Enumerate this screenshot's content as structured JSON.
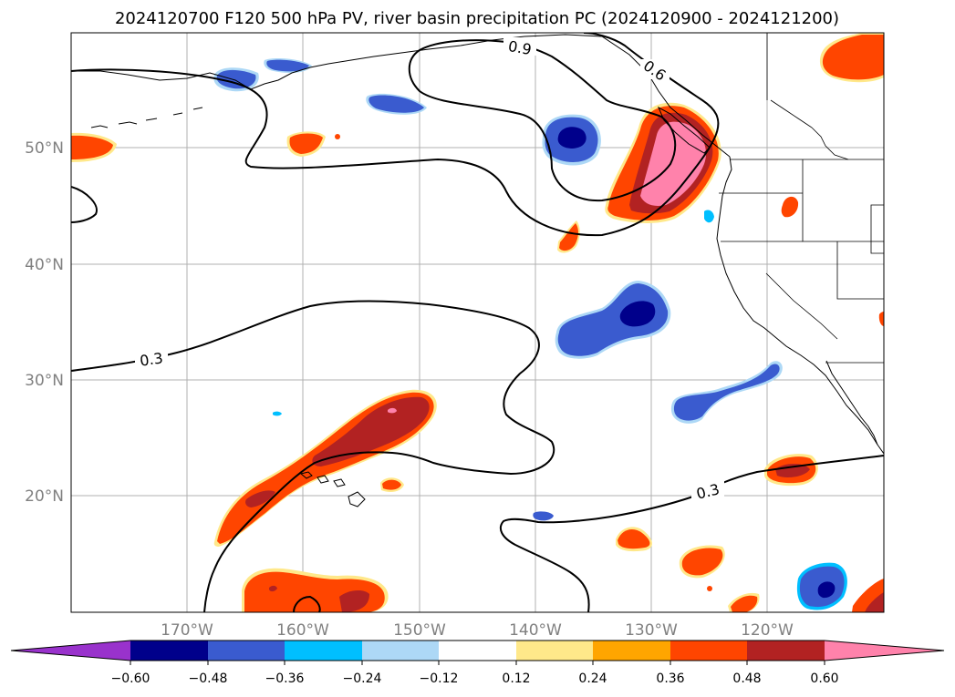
{
  "title": "2024120700 F120 500 hPa PV, river basin precipitation PC (2024120900 - 2024121200)",
  "map": {
    "lat_labels": [
      "50°N",
      "40°N",
      "30°N",
      "20°N"
    ],
    "lon_labels": [
      "170°W",
      "160°W",
      "150°W",
      "140°W",
      "130°W",
      "120°W"
    ],
    "contour_labels": [
      "0.9",
      "0.6",
      "0.3",
      "0.3"
    ],
    "extent": {
      "lon": [
        -180,
        -110
      ],
      "lat": [
        10,
        60
      ]
    },
    "gridlines": true
  },
  "colorbar": {
    "ticks": [
      "−0.60",
      "−0.48",
      "−0.36",
      "−0.24",
      "−0.12",
      "0.12",
      "0.24",
      "0.36",
      "0.48",
      "0.60"
    ],
    "colors": [
      "#9932CC",
      "#00008B",
      "#3A5BCF",
      "#00BFFF",
      "#ADD8F6",
      "#FFFFFF",
      "#FFE88A",
      "#FFA500",
      "#FF4500",
      "#B22222",
      "#FF82AB"
    ]
  },
  "colors": {
    "pos_1": "#FFE88A",
    "pos_2": "#FFA500",
    "pos_3": "#FF4500",
    "pos_4": "#B22222",
    "pos_5": "#FF82AB",
    "neg_1": "#ADD8F6",
    "neg_2": "#00BFFF",
    "neg_3": "#3A5BCF",
    "neg_4": "#00008B"
  }
}
